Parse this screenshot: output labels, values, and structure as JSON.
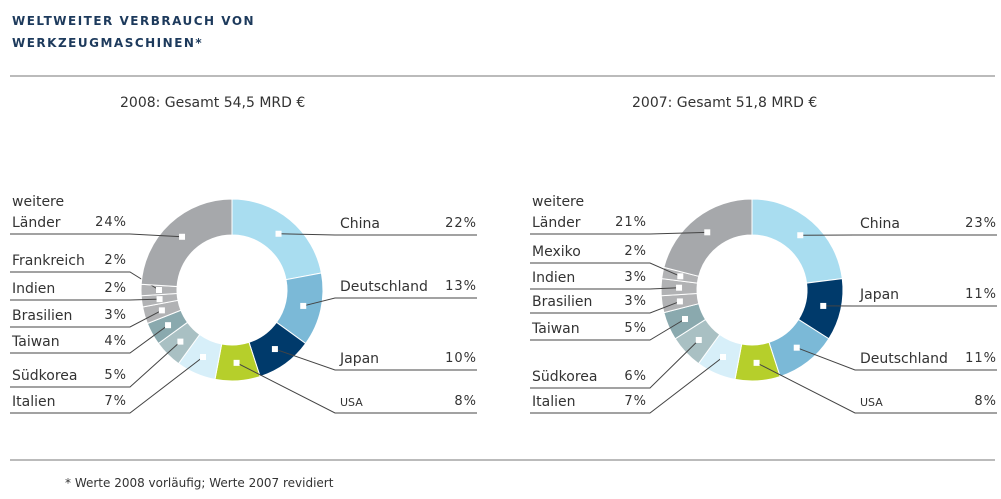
{
  "title": "WELTWEITER VERBRAUCH VON WERKZEUGMASCHINEN*",
  "footnote": "* Werte 2008 vorläufig; Werte 2007 revidiert",
  "chart_data": [
    {
      "type": "donut",
      "title": "2008: Gesamt 54,5 MRD €",
      "categories": [
        "China",
        "Deutschland",
        "Japan",
        "USA",
        "Italien",
        "Südkorea",
        "Taiwan",
        "Brasilien",
        "Indien",
        "Frankreich",
        "weitere Länder"
      ],
      "values": [
        22,
        13,
        10,
        8,
        7,
        5,
        4,
        3,
        2,
        2,
        24
      ],
      "value_labels": [
        "22%",
        "13%",
        "10%",
        "8%",
        "7%",
        "5%",
        "4%",
        "3%",
        "2%",
        "2%",
        "24%"
      ],
      "colors": [
        "#a9ddf0",
        "#7bb9d7",
        "#003a6b",
        "#b6cf2b",
        "#d7eff9",
        "#a9c0c3",
        "#8aa9ae",
        "#b1b2b4",
        "#b1b2b4",
        "#b1b2b4",
        "#a6a8ab"
      ]
    },
    {
      "type": "donut",
      "title": "2007: Gesamt 51,8 MRD €",
      "categories": [
        "China",
        "Japan",
        "Deutschland",
        "USA",
        "Italien",
        "Südkorea",
        "Taiwan",
        "Brasilien",
        "Indien",
        "Mexiko",
        "weitere Länder"
      ],
      "values": [
        23,
        11,
        11,
        8,
        7,
        6,
        5,
        3,
        3,
        2,
        21
      ],
      "value_labels": [
        "23%",
        "11%",
        "11%",
        "8%",
        "7%",
        "6%",
        "5%",
        "3%",
        "3%",
        "2%",
        "21%"
      ],
      "colors": [
        "#a9ddf0",
        "#003a6b",
        "#7bb9d7",
        "#b6cf2b",
        "#d7eff9",
        "#a9c0c3",
        "#8aa9ae",
        "#b1b2b4",
        "#b1b2b4",
        "#b1b2b4",
        "#a6a8ab"
      ]
    }
  ]
}
